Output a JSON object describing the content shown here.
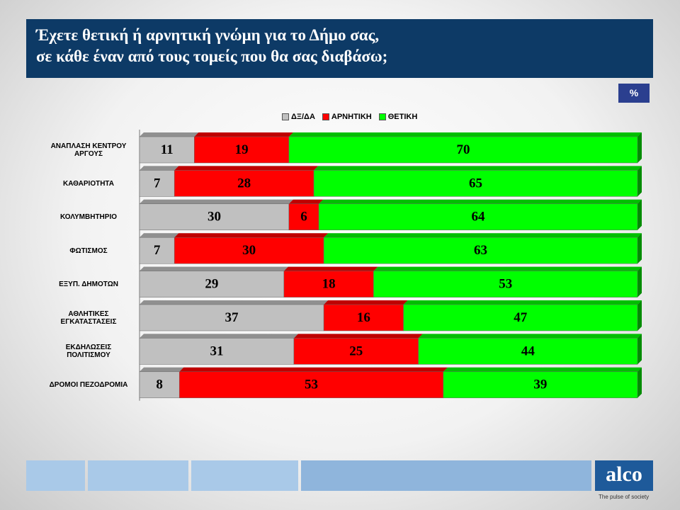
{
  "chart_data": {
    "type": "stacked-bar-horizontal",
    "title": [
      "Έχετε θετική ή αρνητική γνώμη για το Δήμο σας,",
      "σε κάθε έναν από τους τομείς που θα σας διαβάσω;"
    ],
    "unit_label": "%",
    "categories": [
      "ΑΝΑΠΛΑΣΗ ΚΕΝΤΡΟΥ ΑΡΓΟΥΣ",
      "ΚΑΘΑΡΙΟΤΗΤΑ",
      "ΚΟΛΥΜΒΗΤΗΡΙΟ",
      "ΦΩΤΙΣΜΟΣ",
      "ΕΞΥΠ. ΔΗΜΟΤΩΝ",
      "ΑΘΛΗΤΙΚΕΣ ΕΓΚΑΤΑΣΤΑΣΕΙΣ",
      "ΕΚΔΗΛΩΣΕΙΣ ΠΟΛΙΤΙΣΜΟΥ",
      "ΔΡΟΜΟΙ ΠΕΖΟΔΡΟΜΙΑ"
    ],
    "series": [
      {
        "name": "ΔΞ/ΔΑ",
        "color": "#c0c0c0",
        "values": [
          11,
          7,
          30,
          7,
          29,
          37,
          31,
          8
        ]
      },
      {
        "name": "ΑΡΝΗΤΙΚΗ",
        "color": "#ff0000",
        "values": [
          19,
          28,
          6,
          30,
          18,
          16,
          25,
          53
        ]
      },
      {
        "name": "ΘΕΤΙΚΗ",
        "color": "#00ff00",
        "values": [
          70,
          65,
          64,
          63,
          53,
          47,
          44,
          39
        ]
      }
    ],
    "xlim": [
      0,
      100
    ],
    "legend": "top"
  },
  "footer": {
    "logo": "alco",
    "tagline": "The pulse of society"
  }
}
